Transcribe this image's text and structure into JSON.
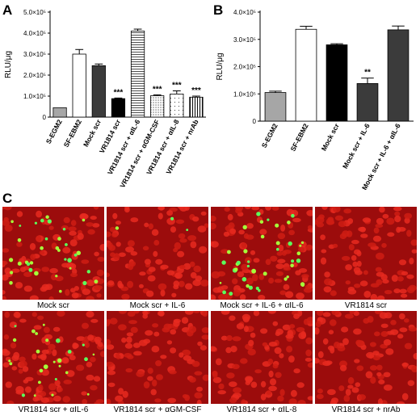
{
  "panels": {
    "a": "A",
    "b": "B",
    "c": "C"
  },
  "chart_data": [
    {
      "type": "bar",
      "panel": "A",
      "ylabel": "RLU/μg",
      "ylim": [
        0,
        500000
      ],
      "yticks": [
        0,
        100000,
        200000,
        300000,
        400000,
        500000
      ],
      "ytick_labels": [
        "0",
        "1.0×10⁵",
        "2.0×10⁵",
        "3.0×10⁵",
        "4.0×10⁵",
        "5.0×10⁵"
      ],
      "categories": [
        "S-EGM2",
        "SF-EBM2",
        "Mock scr",
        "VR1814 scr",
        "VR1814 scr + αIL-6",
        "VR1814 scr + αGM-CSF",
        "VR1814 scr + αIL-8",
        "VR1814 scr + nrAb"
      ],
      "values": [
        45000,
        300000,
        245000,
        88000,
        410000,
        102000,
        110000,
        95000
      ],
      "errors": [
        0,
        22000,
        8000,
        3000,
        9000,
        4000,
        15000,
        5000
      ],
      "significance": [
        "",
        "",
        "",
        "***",
        "",
        "***",
        "***",
        "***"
      ],
      "bar_styles": [
        "grey",
        "white",
        "dark",
        "black",
        "hstripe",
        "dots",
        "sparse",
        "vstripe"
      ]
    },
    {
      "type": "bar",
      "panel": "B",
      "ylabel": "RLU/μg",
      "ylim": [
        0,
        400000
      ],
      "yticks": [
        0,
        100000,
        200000,
        300000,
        400000
      ],
      "ytick_labels": [
        "0",
        "1.0×10⁵",
        "2.0×10⁵",
        "3.0×10⁵",
        "4.0×10⁵"
      ],
      "categories": [
        "S-EGM2",
        "SF-EBM2",
        "Mock scr",
        "Mock scr + IL-6",
        "Mock scr + IL-6 + αIL-6"
      ],
      "values": [
        105000,
        337000,
        280000,
        138000,
        335000
      ],
      "errors": [
        5000,
        11000,
        4000,
        20000,
        14000
      ],
      "significance": [
        "",
        "",
        "",
        "**",
        ""
      ],
      "bar_styles": [
        "grey",
        "white",
        "black",
        "dark",
        "dark"
      ]
    }
  ],
  "micrographs": [
    {
      "caption": "Mock scr",
      "green": 34
    },
    {
      "caption": "Mock scr + IL-6",
      "green": 3
    },
    {
      "caption": "Mock scr + IL-6 + αIL-6",
      "green": 40
    },
    {
      "caption": "VR1814 scr",
      "green": 0
    },
    {
      "caption": "VR1814 scr + αIL-6",
      "green": 26
    },
    {
      "caption": "VR1814 scr + αGM-CSF",
      "green": 0
    },
    {
      "caption": "VR1814 scr + αIL-8",
      "green": 0
    },
    {
      "caption": "VR1814 scr + nrAb",
      "green": 0
    }
  ]
}
